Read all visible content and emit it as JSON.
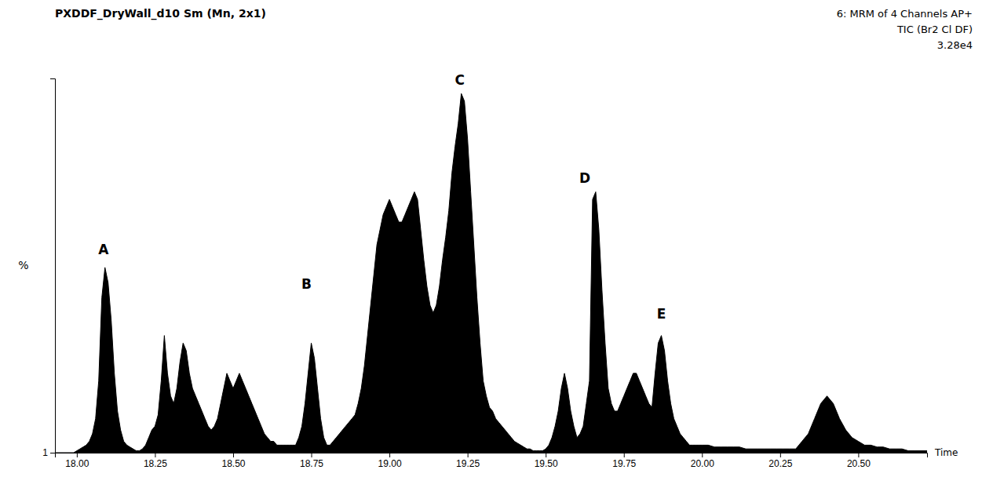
{
  "chart_data": {
    "type": "area",
    "title": "PXDDF_DryWall_d10 Sm (Mn, 2x1)",
    "subtitle": [
      "6: MRM of 4 Channels AP+",
      "TIC (Br2 Cl DF)",
      "3.28e4"
    ],
    "x_label": "Time",
    "y_label": "%",
    "color": "#000000",
    "grid": false,
    "xlim": [
      17.93,
      20.72
    ],
    "ylim": [
      1,
      100
    ],
    "xticks": [
      {
        "value": 18.0,
        "label": "18.00"
      },
      18.25,
      {
        "value": 18.5,
        "label": "18.50"
      },
      18.75,
      {
        "value": 19.0,
        "label": "19.00"
      },
      19.25,
      {
        "value": 19.5,
        "label": "19.50"
      },
      19.75,
      {
        "value": 20.0,
        "label": "20.00"
      },
      20.25,
      {
        "value": 20.5,
        "label": "20.50"
      }
    ],
    "yticks": [
      1
    ],
    "annotations": [
      {
        "text": "A",
        "x": 18.085,
        "y": 53
      },
      {
        "text": "B",
        "x": 18.735,
        "y": 44
      },
      {
        "text": "C",
        "x": 19.225,
        "y": 98
      },
      {
        "text": "D",
        "x": 19.625,
        "y": 72
      },
      {
        "text": "E",
        "x": 19.87,
        "y": 36
      }
    ],
    "x": [
      17.93,
      17.96,
      17.99,
      18.0,
      18.01,
      18.02,
      18.03,
      18.04,
      18.05,
      18.06,
      18.07,
      18.08,
      18.09,
      18.1,
      18.11,
      18.12,
      18.13,
      18.14,
      18.15,
      18.16,
      18.17,
      18.18,
      18.19,
      18.2,
      18.21,
      18.22,
      18.23,
      18.24,
      18.25,
      18.26,
      18.27,
      18.28,
      18.29,
      18.3,
      18.31,
      18.32,
      18.33,
      18.34,
      18.35,
      18.36,
      18.37,
      18.38,
      18.39,
      18.4,
      18.41,
      18.42,
      18.43,
      18.44,
      18.45,
      18.46,
      18.47,
      18.48,
      18.49,
      18.5,
      18.51,
      18.52,
      18.53,
      18.54,
      18.55,
      18.56,
      18.57,
      18.58,
      18.59,
      18.6,
      18.61,
      18.62,
      18.63,
      18.64,
      18.65,
      18.66,
      18.67,
      18.68,
      18.69,
      18.7,
      18.71,
      18.72,
      18.73,
      18.74,
      18.75,
      18.76,
      18.77,
      18.78,
      18.79,
      18.8,
      18.81,
      18.82,
      18.83,
      18.84,
      18.85,
      18.86,
      18.87,
      18.88,
      18.89,
      18.9,
      18.91,
      18.92,
      18.93,
      18.94,
      18.95,
      18.96,
      18.97,
      18.98,
      18.99,
      19.0,
      19.01,
      19.02,
      19.03,
      19.04,
      19.05,
      19.06,
      19.07,
      19.08,
      19.09,
      19.1,
      19.11,
      19.12,
      19.13,
      19.14,
      19.15,
      19.16,
      19.17,
      19.18,
      19.19,
      19.2,
      19.21,
      19.22,
      19.23,
      19.24,
      19.25,
      19.26,
      19.27,
      19.28,
      19.29,
      19.3,
      19.31,
      19.32,
      19.33,
      19.34,
      19.35,
      19.36,
      19.37,
      19.38,
      19.39,
      19.4,
      19.41,
      19.42,
      19.43,
      19.44,
      19.45,
      19.46,
      19.47,
      19.48,
      19.49,
      19.5,
      19.51,
      19.52,
      19.53,
      19.54,
      19.55,
      19.56,
      19.57,
      19.58,
      19.59,
      19.6,
      19.61,
      19.62,
      19.63,
      19.64,
      19.65,
      19.66,
      19.67,
      19.68,
      19.69,
      19.7,
      19.71,
      19.72,
      19.73,
      19.74,
      19.75,
      19.76,
      19.77,
      19.78,
      19.79,
      19.8,
      19.81,
      19.82,
      19.83,
      19.84,
      19.85,
      19.86,
      19.87,
      19.88,
      19.89,
      19.9,
      19.91,
      19.92,
      19.93,
      19.94,
      19.95,
      19.96,
      19.97,
      19.98,
      19.99,
      20.0,
      20.02,
      20.04,
      20.06,
      20.08,
      20.1,
      20.12,
      20.14,
      20.16,
      20.18,
      20.2,
      20.22,
      20.24,
      20.26,
      20.28,
      20.3,
      20.32,
      20.34,
      20.36,
      20.38,
      20.4,
      20.42,
      20.44,
      20.46,
      20.48,
      20.5,
      20.52,
      20.54,
      20.56,
      20.58,
      20.6,
      20.62,
      20.64,
      20.66,
      20.68,
      20.7,
      20.72
    ],
    "values": [
      1,
      1,
      1,
      1.5,
      2,
      2.5,
      3,
      4,
      6,
      10,
      20,
      42,
      50,
      46,
      36,
      22,
      12,
      7,
      4,
      3,
      2.5,
      2,
      1.5,
      1.5,
      2,
      3,
      5,
      7,
      8,
      11,
      20,
      32,
      22,
      16,
      14,
      18,
      25,
      30,
      28,
      22,
      18,
      16,
      14,
      12,
      10,
      8,
      7,
      8,
      10,
      14,
      18,
      22,
      20,
      18,
      20,
      22,
      20,
      18,
      16,
      14,
      12,
      10,
      8,
      6,
      5,
      4,
      4,
      3,
      3,
      3,
      3,
      3,
      3,
      3,
      5,
      8,
      14,
      22,
      30,
      26,
      18,
      10,
      5,
      3,
      3,
      4,
      5,
      6,
      7,
      8,
      9,
      10,
      11,
      14,
      18,
      24,
      32,
      40,
      48,
      56,
      60,
      64,
      66,
      68,
      66,
      64,
      62,
      62,
      64,
      66,
      68,
      70,
      68,
      60,
      52,
      45,
      40,
      38,
      40,
      45,
      52,
      58,
      65,
      75,
      82,
      88,
      96,
      94,
      84,
      70,
      56,
      42,
      30,
      20,
      16,
      13,
      12,
      10,
      9,
      8,
      7,
      6,
      5,
      4,
      3.5,
      3,
      2.5,
      2,
      2,
      1.5,
      1.5,
      1.5,
      1.5,
      2,
      3,
      5,
      8,
      12,
      18,
      22,
      18,
      12,
      8,
      5,
      6,
      8,
      14,
      20,
      68,
      70,
      60,
      44,
      30,
      18,
      14,
      12,
      12,
      14,
      16,
      18,
      20,
      22,
      22,
      20,
      18,
      16,
      14,
      13,
      22,
      30,
      32,
      28,
      20,
      14,
      10,
      8,
      6,
      5,
      4,
      3,
      3,
      3,
      3,
      3,
      3,
      2.5,
      2.5,
      2.5,
      2.5,
      2.5,
      2,
      2,
      2,
      2,
      2,
      2,
      2,
      2,
      2,
      4,
      6,
      10,
      14,
      16,
      14,
      10,
      7,
      5,
      4,
      3,
      3,
      2.5,
      2.5,
      2,
      2,
      2,
      1.5,
      1.5,
      1.5,
      1.5
    ]
  }
}
